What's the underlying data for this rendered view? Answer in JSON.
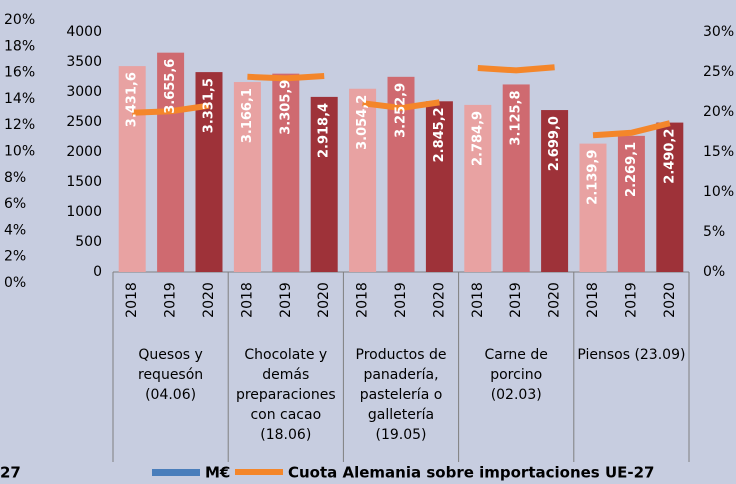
{
  "chart_data": {
    "type": "bar_line",
    "groups": [
      [
        "Quesos y",
        "requesón",
        "(04.06)"
      ],
      [
        "Chocolate y",
        "demás",
        "preparaciones",
        "con cacao",
        "(18.06)"
      ],
      [
        "Productos de",
        "panadería,",
        "pastelería o",
        "galletería",
        "(19.05)"
      ],
      [
        "Carne de",
        "porcino",
        "(02.03)"
      ],
      [
        "Piensos (23.09)"
      ]
    ],
    "categories": [
      "2018",
      "2019",
      "2020",
      "2018",
      "2019",
      "2020",
      "2018",
      "2019",
      "2020",
      "2018",
      "2019",
      "2020",
      "2018",
      "2019",
      "2020"
    ],
    "year_colors": [
      "#e8a2a2",
      "#cf6a70",
      "#9e3239"
    ],
    "series": [
      {
        "name": "M€",
        "color": "#4a7ebb",
        "values": [
          3431.6,
          3655.6,
          3331.5,
          3166.1,
          3305.9,
          2918.4,
          3054.2,
          3252.9,
          2845.2,
          2784.9,
          3125.8,
          2699.0,
          2139.9,
          2269.1,
          2490.2
        ],
        "value_labels": [
          "3.431,6",
          "3.655,6",
          "3.331,5",
          "3.166,1",
          "3.305,9",
          "2.918,4",
          "3.054,2",
          "3.252,9",
          "2.845,2",
          "2.784,9",
          "3.125,8",
          "2.699,0",
          "2.139,9",
          "2.269,1",
          "2.490,2"
        ]
      },
      {
        "name": "Cuota Alemania sobre importaciones UE-27",
        "color": "#f4862a",
        "axis": "y2",
        "values": [
          19.9,
          20.1,
          20.8,
          24.4,
          24.2,
          24.5,
          21.1,
          20.5,
          21.2,
          25.5,
          25.2,
          25.6,
          17.1,
          17.4,
          18.6
        ]
      }
    ],
    "ylim": [
      0,
      4000
    ],
    "yticks": [
      0,
      500,
      1000,
      1500,
      2000,
      2500,
      3000,
      3500,
      4000
    ],
    "y2lim": [
      0,
      30
    ],
    "y2ticks": [
      {
        "value": 0,
        "label": "0%"
      },
      {
        "value": 5,
        "label": "5%"
      },
      {
        "value": 10,
        "label": "10%"
      },
      {
        "value": 15,
        "label": "15%"
      },
      {
        "value": 20,
        "label": "20%"
      },
      {
        "value": 25,
        "label": "25%"
      },
      {
        "value": 30,
        "label": "30%"
      }
    ],
    "y3lim": [
      0,
      20
    ],
    "y3ticks": [
      {
        "value": 0,
        "label": "0%"
      },
      {
        "value": 2,
        "label": "2%"
      },
      {
        "value": 4,
        "label": "4%"
      },
      {
        "value": 6,
        "label": "6%"
      },
      {
        "value": 8,
        "label": "8%"
      },
      {
        "value": 10,
        "label": "10%"
      },
      {
        "value": 12,
        "label": "12%"
      },
      {
        "value": 14,
        "label": "14%"
      },
      {
        "value": 16,
        "label": "16%"
      },
      {
        "value": 18,
        "label": "18%"
      },
      {
        "value": 20,
        "label": "20%"
      }
    ],
    "legend_fragment": "27"
  }
}
